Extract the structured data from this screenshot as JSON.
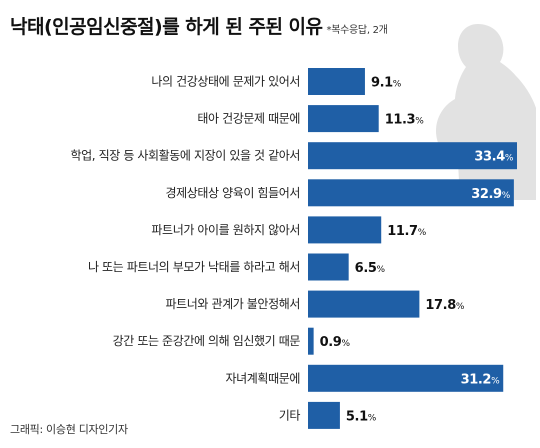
{
  "header": {
    "title": "낙태(인공임신중절)를 하게 된 주된 이유",
    "note": "*복수응답, 2개"
  },
  "footer": {
    "credit": "그래픽: 이승현 디자인기자"
  },
  "colors": {
    "bar": "#1f5fa6",
    "silhouette": "#e2e2e2",
    "label_dark": "#111111",
    "label_light": "#ffffff"
  },
  "chart_data": {
    "type": "bar",
    "orientation": "horizontal",
    "title": "낙태(인공임신중절)를 하게 된 주된 이유",
    "unit": "%",
    "xlim": [
      0,
      33.4
    ],
    "grid": false,
    "categories": [
      "나의 건강상태에 문제가 있어서",
      "태아 건강문제 때문에",
      "학업, 직장 등 사회활동에 지장이 있을 것 같아서",
      "경제상태상 양육이 힘들어서",
      "파트너가 아이를 원하지 않아서",
      "나 또는 파트너의 부모가 낙태를 하라고 해서",
      "파트너와 관계가 불안정해서",
      "강간 또는 준강간에 의해 임신했기 때문",
      "자녀계획때문에",
      "기타"
    ],
    "values": [
      9.1,
      11.3,
      33.4,
      32.9,
      11.7,
      6.5,
      17.8,
      0.9,
      31.2,
      5.1
    ],
    "value_labels": [
      "9.1",
      "11.3",
      "33.4",
      "32.9",
      "11.7",
      "6.5",
      "17.8",
      "0.9",
      "31.2",
      "5.1"
    ]
  }
}
